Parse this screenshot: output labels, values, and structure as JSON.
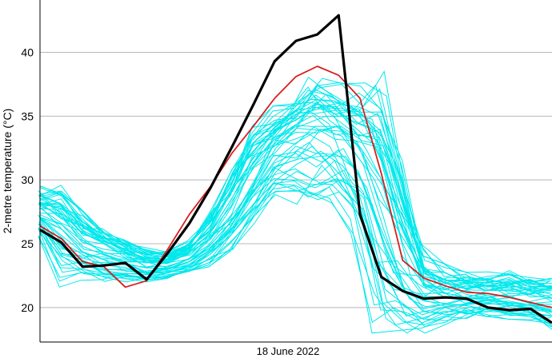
{
  "chart_data": {
    "type": "line",
    "title": "",
    "ylabel": "2-metre temperature (°C)",
    "xlabel": "18 June 2022",
    "ylim": [
      17.3,
      44.1
    ],
    "xlim": [
      0,
      24
    ],
    "yticks": [
      20,
      25,
      30,
      35,
      40
    ],
    "grid": "horizontal",
    "colors": {
      "ensemble": "#00e8ec",
      "control": "#d62020",
      "observed": "#000000",
      "grid": "#b8b8b8",
      "axis": "#000000"
    },
    "x": [
      0,
      1,
      2,
      3,
      4,
      5,
      6,
      7,
      8,
      9,
      10,
      11,
      12,
      13,
      14,
      15,
      16,
      17,
      18,
      19,
      20,
      21,
      22,
      23,
      24
    ],
    "series": [
      {
        "role": "observed",
        "values": [
          26.1,
          25.1,
          23.2,
          23.3,
          23.5,
          22.2,
          24.3,
          26.6,
          29.4,
          32.6,
          35.9,
          39.3,
          40.9,
          41.4,
          42.9,
          27.3,
          22.4,
          21.3,
          20.7,
          20.8,
          20.7,
          20.0,
          19.8,
          19.9,
          18.8
        ]
      },
      {
        "role": "control",
        "values": [
          26.4,
          25.4,
          23.6,
          23.2,
          21.6,
          22.1,
          24.6,
          27.3,
          29.5,
          32.1,
          34.2,
          36.4,
          38.1,
          38.9,
          38.2,
          36.4,
          30.5,
          23.7,
          22.3,
          21.7,
          21.2,
          21.1,
          20.8,
          20.4,
          20.0
        ]
      }
    ],
    "ensemble": {
      "members": 50,
      "median": [
        27.4,
        26.0,
        24.6,
        23.9,
        23.6,
        23.2,
        23.3,
        23.9,
        25.0,
        26.8,
        29.3,
        31.8,
        33.6,
        34.2,
        33.2,
        30.6,
        26.4,
        22.3,
        21.1,
        20.9,
        20.9,
        20.8,
        20.6,
        20.4,
        20.2
      ],
      "low": [
        25.6,
        21.6,
        21.8,
        21.8,
        22.0,
        22.0,
        22.3,
        22.6,
        23.2,
        24.4,
        26.6,
        28.7,
        28.1,
        28.1,
        28.2,
        25.8,
        18.0,
        18.0,
        18.0,
        18.6,
        19.0,
        19.3,
        19.1,
        18.9,
        18.2
      ],
      "high": [
        29.6,
        29.8,
        27.6,
        26.3,
        25.4,
        24.7,
        24.5,
        25.4,
        27.6,
        30.9,
        34.3,
        35.8,
        36.5,
        38.4,
        38.2,
        37.6,
        38.5,
        32.0,
        24.9,
        23.5,
        23.0,
        22.8,
        22.9,
        22.5,
        22.3
      ]
    }
  }
}
